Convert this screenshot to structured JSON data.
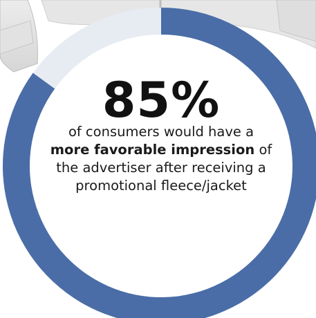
{
  "chart_data": {
    "type": "pie",
    "style": "donut",
    "values": [
      85,
      15
    ],
    "colors": [
      "#4a6da7",
      "#e7ecf3"
    ],
    "title": "85%"
  },
  "stat": {
    "value_label": "85%",
    "caption_part1": "of consumers would have a ",
    "caption_bold1": "more favorable impression",
    "caption_part2": " of the advertiser after receiving a promotional fleece/jacket"
  },
  "colors": {
    "accent": "#4a6da7",
    "remainder": "#e7ecf3",
    "center_fill": "#ffffff",
    "text": "#1a1a1a"
  }
}
